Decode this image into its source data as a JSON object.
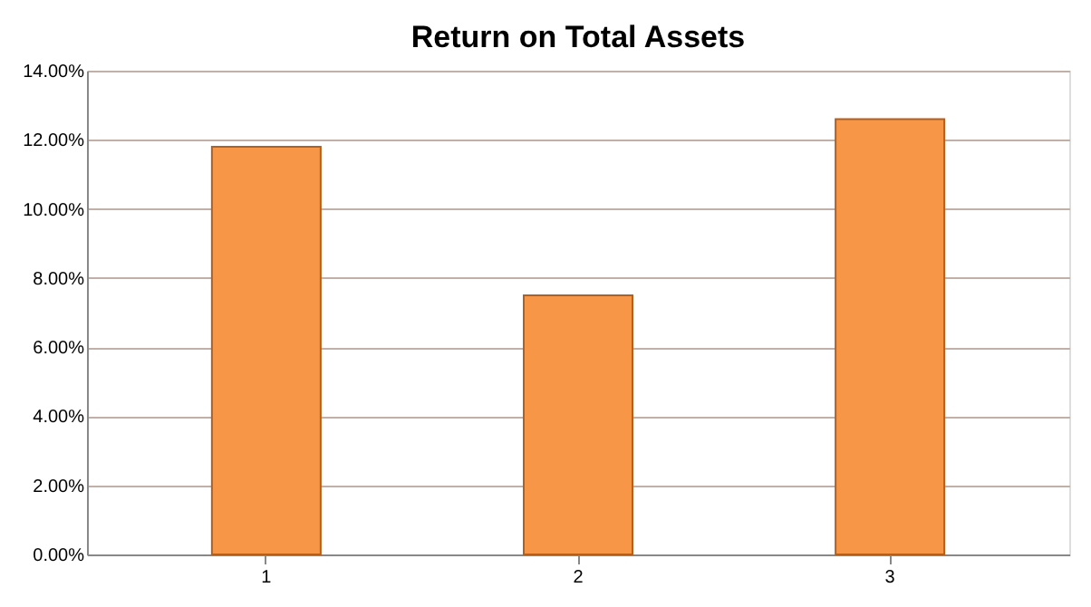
{
  "chart_data": {
    "type": "bar",
    "title": "Return on Total Assets",
    "categories": [
      "1",
      "2",
      "3"
    ],
    "values": [
      11.8,
      7.5,
      12.6
    ],
    "color": "#f79646",
    "ylim": [
      0,
      14
    ],
    "yticks": [
      {
        "value": 0,
        "label": "0.00%"
      },
      {
        "value": 2,
        "label": "2.00%"
      },
      {
        "value": 4,
        "label": "4.00%"
      },
      {
        "value": 6,
        "label": "6.00%"
      },
      {
        "value": 8,
        "label": "8.00%"
      },
      {
        "value": 10,
        "label": "10.00%"
      },
      {
        "value": 12,
        "label": "12.00%"
      },
      {
        "value": 14,
        "label": "14.00%"
      }
    ],
    "grid": "y"
  }
}
